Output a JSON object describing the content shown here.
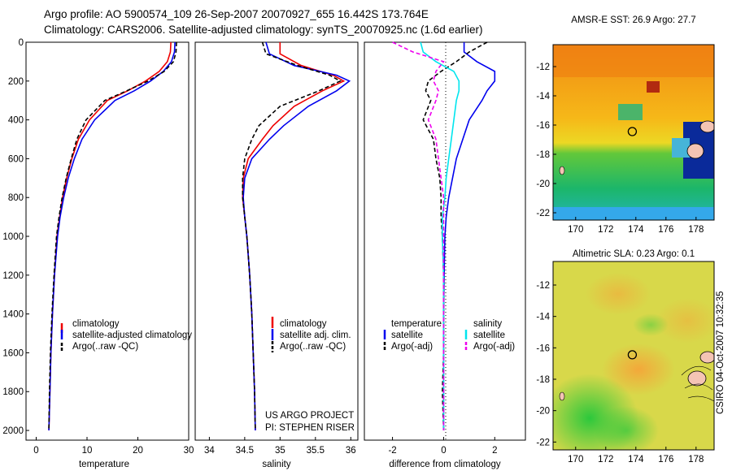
{
  "header": {
    "line1": "Argo profile: AO 5900574_109 26-Sep-2007 20070927_655 16.442S 173.764E",
    "line2": "Climatology: CARS2006. Satellite-adjusted climatology: synTS_20070925.nc (1.6d earlier)"
  },
  "footer": {
    "credit1": "US ARGO PROJECT",
    "credit2": "PI: STEPHEN RISER",
    "stamp": "CSIRO 04-Oct-2007 10:32:35"
  },
  "chart_data": [
    {
      "type": "line",
      "id": "temperature",
      "xlabel": "temperature",
      "ylabel": "",
      "xlim": [
        -2,
        30
      ],
      "ylim": [
        0,
        2050
      ],
      "y_reversed": true,
      "xticks": [
        "0",
        "10",
        "20",
        "30"
      ],
      "xtick_values": [
        0,
        10,
        20,
        30
      ],
      "yticks": [
        "0",
        "200",
        "400",
        "600",
        "800",
        "1000",
        "1200",
        "1400",
        "1600",
        "1800",
        "2000"
      ],
      "ytick_values": [
        0,
        200,
        400,
        600,
        800,
        1000,
        1200,
        1400,
        1600,
        1800,
        2000
      ],
      "legend": [
        "climatology",
        "satellite-adjusted climatology",
        "Argo(..raw -QC)"
      ],
      "series": [
        {
          "name": "climatology",
          "color": "#ee0000",
          "dash": "",
          "x": [
            26.5,
            26.4,
            25.8,
            24.2,
            21.5,
            18.0,
            14.0,
            10.5,
            8.3,
            7.0,
            6.0,
            5.2,
            4.6,
            4.1,
            3.6,
            3.2,
            2.9,
            2.7,
            2.5
          ],
          "y": [
            0,
            50,
            100,
            150,
            200,
            250,
            300,
            400,
            500,
            600,
            700,
            800,
            900,
            1000,
            1200,
            1400,
            1600,
            1800,
            2000
          ]
        },
        {
          "name": "satellite-adjusted climatology",
          "color": "#0000ee",
          "dash": "",
          "x": [
            27.3,
            27.2,
            26.6,
            25.0,
            22.5,
            19.3,
            15.5,
            11.5,
            9.0,
            7.5,
            6.3,
            5.4,
            4.7,
            4.2,
            3.6,
            3.2,
            2.9,
            2.7,
            2.5
          ],
          "y": [
            0,
            50,
            100,
            150,
            200,
            250,
            300,
            400,
            500,
            600,
            700,
            800,
            900,
            1000,
            1200,
            1400,
            1600,
            1800,
            2000
          ]
        },
        {
          "name": "Argo(..raw -QC)",
          "color": "#000000",
          "dash": "5,3",
          "x": [
            27.6,
            27.5,
            27.0,
            25.2,
            22.0,
            17.8,
            13.5,
            9.8,
            8.0,
            6.9,
            5.9,
            5.1,
            4.5,
            4.0,
            3.5,
            3.1,
            2.8,
            2.6,
            2.5
          ],
          "y": [
            0,
            50,
            100,
            150,
            200,
            250,
            300,
            400,
            500,
            600,
            700,
            800,
            900,
            1000,
            1200,
            1400,
            1600,
            1800,
            2000
          ]
        }
      ]
    },
    {
      "type": "line",
      "id": "salinity",
      "xlabel": "salinity",
      "ylabel": "",
      "xlim": [
        33.8,
        36.1
      ],
      "ylim": [
        0,
        2050
      ],
      "y_reversed": true,
      "xticks": [
        "34",
        "34.5",
        "35",
        "35.5",
        "36"
      ],
      "xtick_values": [
        34,
        34.5,
        35,
        35.5,
        36
      ],
      "legend": [
        "climatology",
        "satellite adj. clim.",
        "Argo(..raw -QC)"
      ],
      "series": [
        {
          "name": "climatology",
          "color": "#ee0000",
          "dash": "",
          "x": [
            35.0,
            35.0,
            35.3,
            35.75,
            35.9,
            35.6,
            35.2,
            34.9,
            34.75,
            34.55,
            34.48,
            34.47,
            34.5,
            34.53,
            34.57,
            34.6,
            34.62,
            34.64,
            34.65
          ],
          "y": [
            0,
            60,
            120,
            170,
            200,
            250,
            330,
            430,
            500,
            600,
            700,
            800,
            900,
            1000,
            1200,
            1400,
            1600,
            1800,
            2000
          ]
        },
        {
          "name": "satellite adj. clim.",
          "color": "#0000ee",
          "dash": "",
          "x": [
            34.8,
            34.85,
            35.2,
            35.8,
            35.98,
            35.8,
            35.4,
            35.05,
            34.85,
            34.6,
            34.5,
            34.48,
            34.5,
            34.53,
            34.57,
            34.6,
            34.62,
            34.64,
            34.65
          ],
          "y": [
            0,
            60,
            120,
            170,
            200,
            250,
            330,
            430,
            500,
            600,
            700,
            800,
            900,
            1000,
            1200,
            1400,
            1600,
            1800,
            2000
          ]
        },
        {
          "name": "Argo(..raw -QC)",
          "color": "#000000",
          "dash": "5,3",
          "x": [
            34.75,
            34.8,
            35.25,
            35.7,
            35.85,
            35.55,
            35.0,
            34.7,
            34.6,
            34.5,
            34.47,
            34.47,
            34.5,
            34.53,
            34.57,
            34.6,
            34.62,
            34.64,
            34.65
          ],
          "y": [
            0,
            60,
            120,
            170,
            200,
            250,
            330,
            430,
            500,
            600,
            700,
            800,
            900,
            1000,
            1200,
            1400,
            1600,
            1800,
            2000
          ]
        }
      ]
    },
    {
      "type": "line",
      "id": "difference",
      "xlabel": "difference from climatology",
      "ylabel": "",
      "xlim": [
        -3.1,
        3.2
      ],
      "ylim": [
        0,
        2050
      ],
      "y_reversed": true,
      "xticks": [
        "-2",
        "0",
        "2"
      ],
      "xtick_values": [
        -2,
        0,
        2
      ],
      "legend_headers": [
        "temperature",
        "salinity"
      ],
      "legend": [
        "satellite",
        "Argo(-adj)",
        "satellite",
        "Argo(-adj)"
      ],
      "series": [
        {
          "name": "temperature satellite",
          "color": "#0000ee",
          "dash": "",
          "x": [
            0.8,
            0.8,
            1.3,
            2.0,
            2.0,
            1.7,
            1.5,
            1.0,
            0.75,
            0.5,
            0.35,
            0.2,
            0.1,
            0.05,
            0.02,
            0.0,
            0.0,
            0.0,
            0.0
          ],
          "y": [
            0,
            50,
            100,
            150,
            200,
            250,
            300,
            400,
            500,
            600,
            700,
            800,
            900,
            1000,
            1200,
            1400,
            1600,
            1800,
            2000
          ]
        },
        {
          "name": "temperature Argo(-adj)",
          "color": "#000000",
          "dash": "5,3",
          "x": [
            1.7,
            1.0,
            0.5,
            -0.1,
            -0.6,
            -0.7,
            -0.5,
            -0.8,
            -0.4,
            -0.3,
            -0.15,
            -0.1,
            -0.1,
            -0.05,
            0.0,
            0.0,
            0.0,
            -0.05,
            0.0
          ],
          "y": [
            0,
            50,
            100,
            150,
            200,
            250,
            300,
            400,
            500,
            600,
            700,
            800,
            900,
            1000,
            1200,
            1400,
            1600,
            1800,
            2000
          ]
        },
        {
          "name": "salinity satellite",
          "color": "#00e5ee",
          "dash": "",
          "x": [
            -0.9,
            -0.8,
            -0.3,
            0.4,
            0.6,
            0.6,
            0.5,
            0.4,
            0.3,
            0.2,
            0.1,
            0.05,
            -0.05,
            -0.05,
            0.0,
            0.0,
            0.0,
            0.0,
            0.0
          ],
          "y": [
            0,
            50,
            100,
            150,
            200,
            250,
            300,
            400,
            500,
            600,
            700,
            800,
            900,
            1000,
            1200,
            1400,
            1600,
            1800,
            2000
          ]
        },
        {
          "name": "salinity Argo(-adj)",
          "color": "#ee00ee",
          "dash": "5,3",
          "x": [
            -2.0,
            -1.2,
            0.0,
            -0.3,
            -0.4,
            -0.2,
            -0.3,
            -0.6,
            -0.3,
            -0.2,
            -0.1,
            0.0,
            0.0,
            0.0,
            0.0,
            0.0,
            0.0,
            0.0,
            0.0
          ],
          "y": [
            0,
            50,
            100,
            150,
            200,
            250,
            300,
            400,
            500,
            600,
            700,
            800,
            900,
            1000,
            1200,
            1400,
            1600,
            1800,
            2000
          ]
        }
      ]
    },
    {
      "type": "heatmap",
      "id": "sst_map",
      "title": "AMSR-E SST: 26.9 Argo: 27.7",
      "xlim": [
        168.5,
        179.2
      ],
      "ylim": [
        -22.5,
        -10.5
      ],
      "xticks": [
        "170",
        "172",
        "174",
        "176",
        "178"
      ],
      "xtick_values": [
        170,
        172,
        174,
        176,
        178
      ],
      "yticks": [
        "-12",
        "-14",
        "-16",
        "-18",
        "-20",
        "-22"
      ],
      "ytick_values": [
        -12,
        -14,
        -16,
        -18,
        -20,
        -22
      ],
      "marker": {
        "lon": 173.764,
        "lat": -16.442
      }
    },
    {
      "type": "heatmap",
      "id": "sla_map",
      "title": "Altimetric SLA: 0.23 Argo: 0.1",
      "xlim": [
        168.5,
        179.2
      ],
      "ylim": [
        -22.5,
        -10.5
      ],
      "xticks": [
        "170",
        "172",
        "174",
        "176",
        "178"
      ],
      "xtick_values": [
        170,
        172,
        174,
        176,
        178
      ],
      "yticks": [
        "-12",
        "-14",
        "-16",
        "-18",
        "-20",
        "-22"
      ],
      "ytick_values": [
        -12,
        -14,
        -16,
        -18,
        -20,
        -22
      ],
      "marker": {
        "lon": 173.764,
        "lat": -16.442
      }
    }
  ]
}
